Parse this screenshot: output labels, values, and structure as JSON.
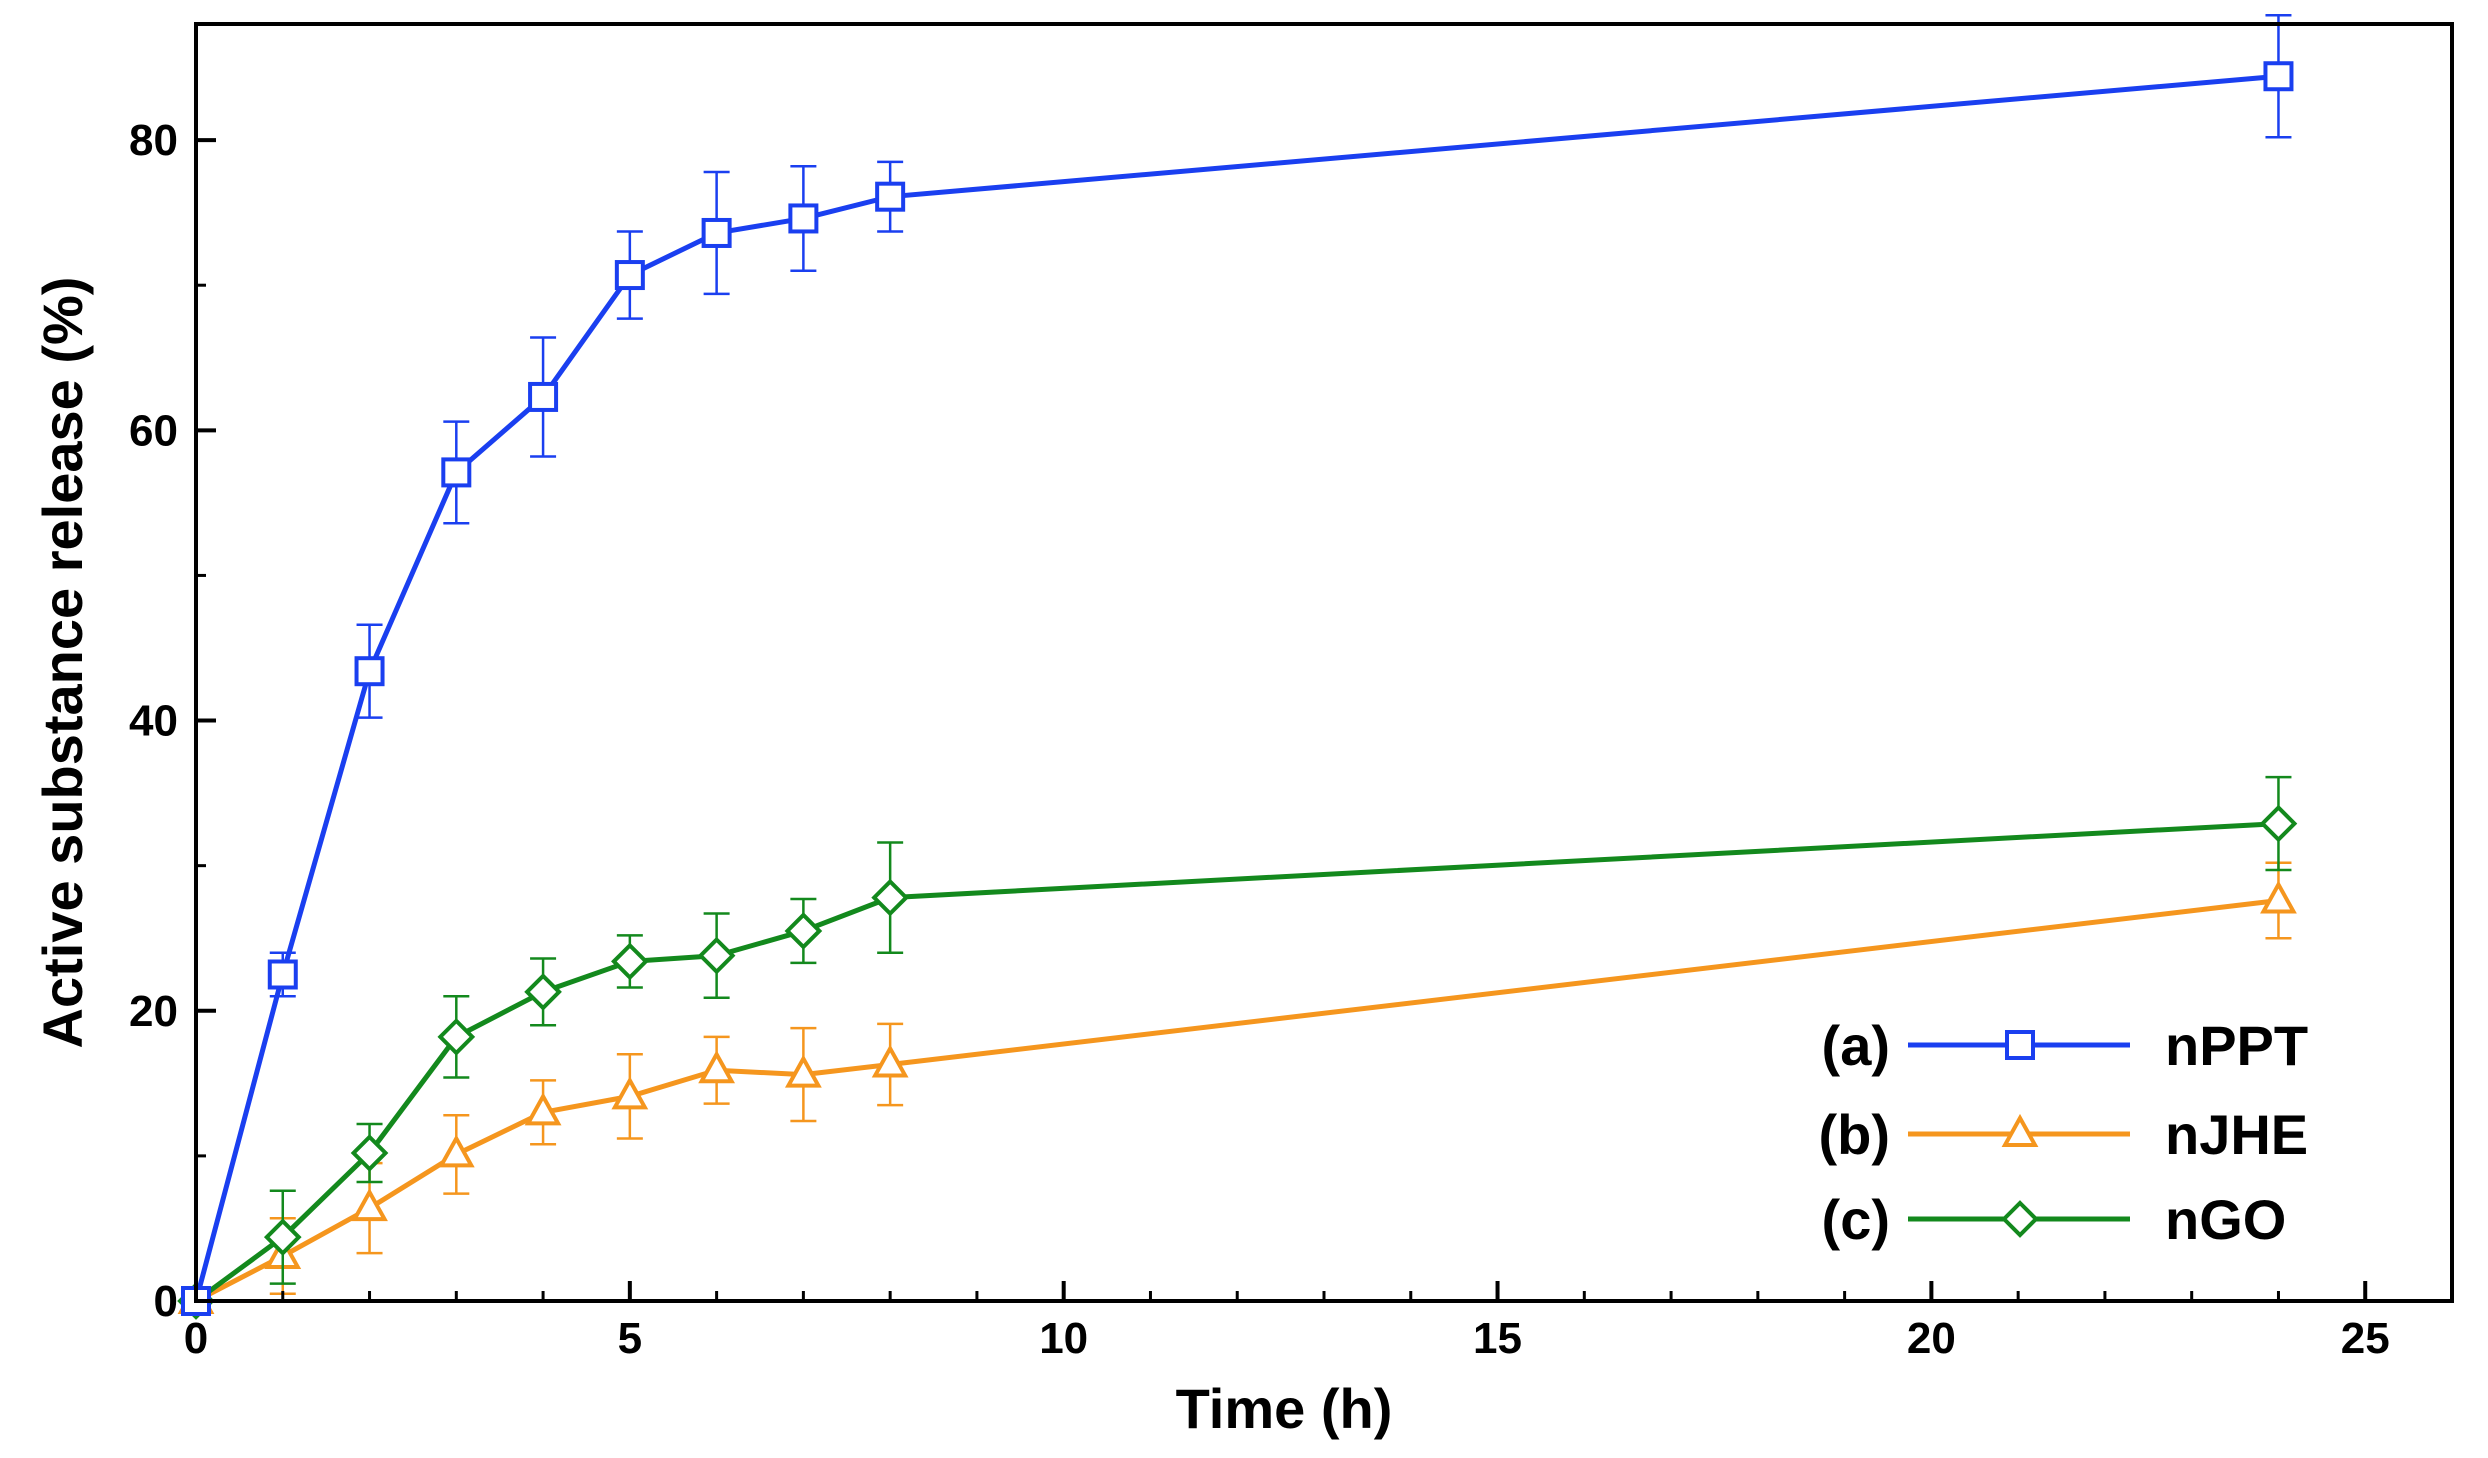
{
  "chart_data": {
    "type": "line",
    "title": "",
    "xlabel": "Time (h)",
    "ylabel": "Active substance release (%)",
    "xlim": [
      0,
      26
    ],
    "ylim": [
      0,
      88
    ],
    "xticks": [
      0,
      5,
      10,
      15,
      20,
      25
    ],
    "yticks": [
      0,
      20,
      40,
      60,
      80
    ],
    "grid": false,
    "legend_position": "bottom-right",
    "x": [
      0,
      1,
      2,
      3,
      4,
      5,
      6,
      7,
      8,
      24
    ],
    "series": [
      {
        "tag": "(a)",
        "name": "nPPT",
        "color": "#1a3ff0",
        "marker": "square",
        "values": [
          0,
          22.5,
          43.4,
          57.1,
          62.3,
          70.7,
          73.6,
          74.6,
          76.1,
          84.4
        ],
        "errors": [
          0,
          1.5,
          3.2,
          3.5,
          4.1,
          3.0,
          4.2,
          3.6,
          2.4,
          4.2
        ]
      },
      {
        "tag": "(b)",
        "name": "nJHE",
        "color": "#f5961e",
        "marker": "triangle",
        "values": [
          0,
          3.1,
          6.4,
          10.1,
          13.0,
          14.1,
          15.9,
          15.6,
          16.3,
          27.6
        ],
        "errors": [
          0,
          2.6,
          3.1,
          2.7,
          2.2,
          2.9,
          2.3,
          3.2,
          2.8,
          2.6
        ]
      },
      {
        "tag": "(c)",
        "name": "nGO",
        "color": "#13891d",
        "marker": "diamond",
        "values": [
          0,
          4.4,
          10.2,
          18.2,
          21.3,
          23.4,
          23.8,
          25.5,
          27.8,
          32.9
        ],
        "errors": [
          0,
          3.2,
          2.0,
          2.8,
          2.3,
          1.8,
          2.9,
          2.2,
          3.8,
          3.2
        ]
      }
    ]
  }
}
